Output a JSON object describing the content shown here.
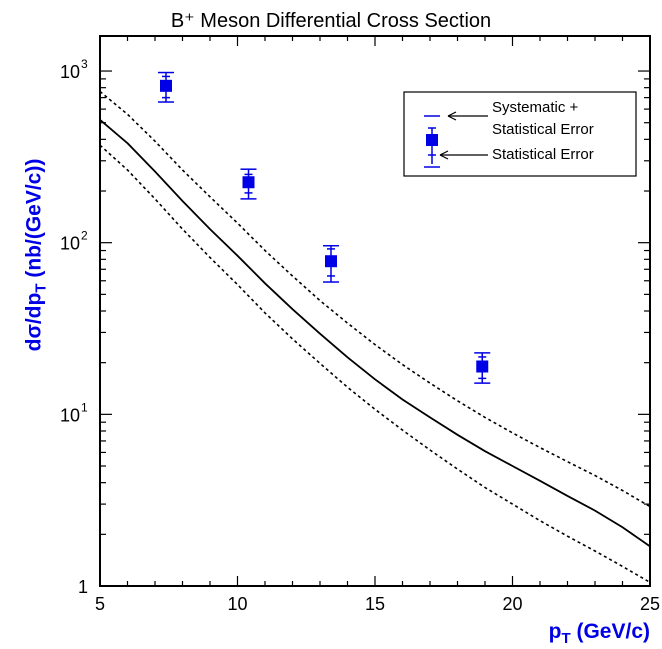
{
  "chart_data": {
    "type": "scatter",
    "title": "B⁺ Meson Differential Cross Section",
    "ylabel": {
      "main": "dσ/dp",
      "sub": "T",
      "rest": " (nb/(GeV/c))"
    },
    "xlabel": {
      "main": "p",
      "sub": "T",
      "rest": " (GeV/c)"
    },
    "xlim": [
      5,
      25
    ],
    "ylim": [
      1,
      1600
    ],
    "yscale": "log",
    "x_ticks": [
      5,
      10,
      15,
      20,
      25
    ],
    "y_ticks": [
      {
        "value": 1,
        "base": "1",
        "exp": ""
      },
      {
        "value": 10,
        "base": "10",
        "exp": "1"
      },
      {
        "value": 100,
        "base": "10",
        "exp": "2"
      },
      {
        "value": 1000,
        "base": "10",
        "exp": "3"
      }
    ],
    "points": [
      {
        "x": 7.4,
        "y": 820,
        "stat_lo": 700,
        "stat_hi": 930,
        "sys_lo": 660,
        "sys_hi": 980
      },
      {
        "x": 10.4,
        "y": 225,
        "stat_lo": 195,
        "stat_hi": 250,
        "sys_lo": 180,
        "sys_hi": 268
      },
      {
        "x": 13.4,
        "y": 78,
        "stat_lo": 64,
        "stat_hi": 92,
        "sys_lo": 59,
        "sys_hi": 96
      },
      {
        "x": 18.9,
        "y": 19,
        "stat_lo": 16.2,
        "stat_hi": 21.6,
        "sys_lo": 15.2,
        "sys_hi": 22.8
      }
    ],
    "theory_curve": {
      "x": [
        5,
        6,
        7,
        8,
        9,
        10,
        11,
        12,
        13,
        14,
        15,
        16,
        17,
        18,
        19,
        20,
        21,
        22,
        23,
        24,
        25
      ],
      "central": [
        520,
        380,
        260,
        175,
        120,
        84,
        58,
        41,
        29.5,
        21.5,
        16,
        12.2,
        9.6,
        7.6,
        6.1,
        5.0,
        4.1,
        3.35,
        2.75,
        2.2,
        1.7
      ],
      "upper": [
        760,
        560,
        390,
        265,
        185,
        130,
        90,
        64,
        46,
        34,
        25.5,
        19.5,
        15.2,
        12.0,
        9.6,
        7.8,
        6.4,
        5.3,
        4.4,
        3.6,
        2.9
      ],
      "lower": [
        370,
        265,
        180,
        120,
        82,
        57,
        39,
        27.5,
        19.8,
        14.4,
        10.7,
        8.1,
        6.2,
        4.8,
        3.75,
        3.0,
        2.4,
        1.95,
        1.6,
        1.3,
        1.05
      ]
    },
    "legend": {
      "position": "top-right",
      "systematic_label_1": "Systematic +",
      "systematic_label_2": "Statistical Error",
      "statistical_label": "Statistical Error"
    },
    "marker_color": "#0000e6"
  }
}
